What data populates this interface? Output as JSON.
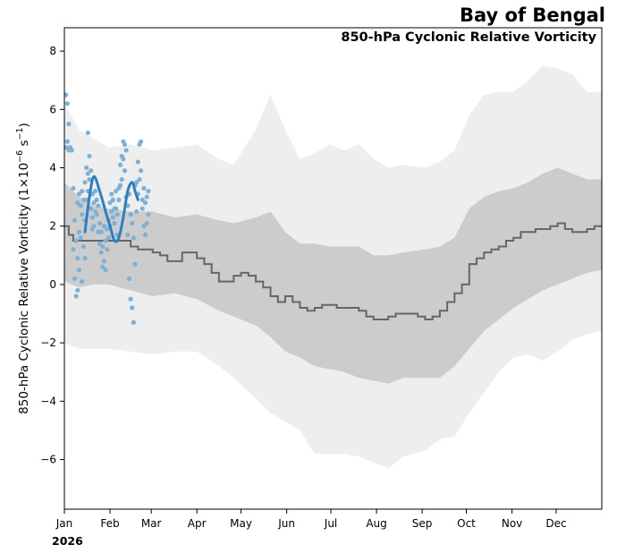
{
  "chart_data": {
    "type": "line",
    "title": "Bay of Bengal",
    "subtitle": "850-hPa Cyclonic Relative Vorticity",
    "ylabel_main": "850-hPa Cyclonic Relative Vorticity (1×10",
    "ylabel_exp": "−6",
    "ylabel_unit": " s",
    "ylabel_unit_exp": "−1",
    "ylabel_close": ")",
    "year_label": "2026",
    "xlim": [
      0,
      365
    ],
    "ylim": [
      -7.7,
      8.8
    ],
    "yticks": [
      -6,
      -4,
      -2,
      0,
      2,
      4,
      6,
      8
    ],
    "ytick_labels": [
      "−6",
      "−4",
      "−2",
      "0",
      "2",
      "4",
      "6",
      "8"
    ],
    "xticks": [
      0,
      31,
      59,
      90,
      120,
      151,
      181,
      212,
      243,
      273,
      304,
      334
    ],
    "xtick_labels": [
      "Jan",
      "Feb",
      "Mar",
      "Apr",
      "May",
      "Jun",
      "Jul",
      "Aug",
      "Sep",
      "Oct",
      "Nov",
      "Dec"
    ],
    "colors": {
      "outer_band": "#eeeeee",
      "inner_band": "#cccccc",
      "climatology_line": "#666666",
      "observed_points": "#7fb0d5",
      "observed_line": "#2f7ebd"
    },
    "outer_band": {
      "x": [
        0,
        10,
        20,
        30,
        45,
        60,
        75,
        90,
        105,
        115,
        130,
        140,
        150,
        160,
        170,
        180,
        190,
        200,
        210,
        220,
        230,
        245,
        255,
        265,
        275,
        285,
        295,
        305,
        315,
        325,
        335,
        345,
        355,
        365
      ],
      "upper": [
        6.2,
        5.3,
        5.0,
        4.7,
        4.8,
        4.6,
        4.7,
        4.8,
        4.3,
        4.1,
        5.3,
        6.5,
        5.3,
        4.3,
        4.5,
        4.8,
        4.6,
        4.8,
        4.3,
        4.0,
        4.1,
        4.0,
        4.2,
        4.6,
        5.8,
        6.5,
        6.6,
        6.6,
        7.0,
        7.5,
        7.4,
        7.2,
        6.6,
        6.6
      ],
      "lower": [
        -2.0,
        -2.2,
        -2.2,
        -2.2,
        -2.3,
        -2.4,
        -2.3,
        -2.3,
        -2.8,
        -3.2,
        -3.9,
        -4.4,
        -4.7,
        -5.0,
        -5.8,
        -5.8,
        -5.8,
        -5.9,
        -6.1,
        -6.3,
        -5.9,
        -5.7,
        -5.3,
        -5.2,
        -4.4,
        -3.7,
        -3.0,
        -2.5,
        -2.4,
        -2.6,
        -2.3,
        -1.9,
        -1.7,
        -1.6
      ]
    },
    "inner_band": {
      "x": [
        0,
        10,
        20,
        30,
        45,
        60,
        75,
        90,
        105,
        115,
        130,
        140,
        150,
        160,
        170,
        180,
        190,
        200,
        210,
        220,
        230,
        245,
        255,
        265,
        275,
        285,
        295,
        305,
        315,
        325,
        335,
        345,
        355,
        365
      ],
      "upper": [
        3.5,
        3.0,
        2.7,
        2.6,
        2.5,
        2.5,
        2.3,
        2.4,
        2.2,
        2.1,
        2.3,
        2.5,
        1.8,
        1.4,
        1.4,
        1.3,
        1.3,
        1.3,
        1.0,
        1.0,
        1.1,
        1.2,
        1.3,
        1.6,
        2.6,
        3.0,
        3.2,
        3.3,
        3.5,
        3.8,
        4.0,
        3.8,
        3.6,
        3.6
      ],
      "lower": [
        0.1,
        -0.1,
        0.0,
        0.0,
        -0.2,
        -0.4,
        -0.3,
        -0.5,
        -0.9,
        -1.1,
        -1.4,
        -1.8,
        -2.3,
        -2.5,
        -2.8,
        -2.9,
        -3.0,
        -3.2,
        -3.3,
        -3.4,
        -3.2,
        -3.2,
        -3.2,
        -2.8,
        -2.2,
        -1.6,
        -1.2,
        -0.8,
        -0.5,
        -0.2,
        0.0,
        0.2,
        0.4,
        0.5
      ]
    },
    "climatology": {
      "x": [
        0,
        3,
        6,
        10,
        15,
        20,
        25,
        30,
        35,
        40,
        45,
        50,
        55,
        60,
        65,
        70,
        75,
        80,
        85,
        90,
        95,
        100,
        105,
        110,
        115,
        120,
        125,
        130,
        135,
        140,
        145,
        150,
        155,
        160,
        165,
        170,
        175,
        180,
        185,
        190,
        195,
        200,
        205,
        210,
        215,
        220,
        225,
        230,
        235,
        240,
        245,
        250,
        255,
        260,
        265,
        270,
        275,
        280,
        285,
        290,
        295,
        300,
        305,
        310,
        315,
        320,
        325,
        330,
        335,
        340,
        345,
        350,
        355,
        360,
        365
      ],
      "y": [
        2.0,
        1.7,
        1.5,
        1.5,
        1.5,
        1.5,
        1.5,
        1.5,
        1.5,
        1.5,
        1.3,
        1.2,
        1.2,
        1.1,
        1.0,
        0.8,
        0.8,
        1.1,
        1.1,
        0.9,
        0.7,
        0.4,
        0.1,
        0.1,
        0.3,
        0.4,
        0.3,
        0.1,
        -0.1,
        -0.4,
        -0.6,
        -0.4,
        -0.6,
        -0.8,
        -0.9,
        -0.8,
        -0.7,
        -0.7,
        -0.8,
        -0.8,
        -0.8,
        -0.9,
        -1.1,
        -1.2,
        -1.2,
        -1.1,
        -1.0,
        -1.0,
        -1.0,
        -1.1,
        -1.2,
        -1.1,
        -0.9,
        -0.6,
        -0.3,
        0.0,
        0.7,
        0.9,
        1.1,
        1.2,
        1.3,
        1.5,
        1.6,
        1.8,
        1.8,
        1.9,
        1.9,
        2.0,
        2.1,
        1.9,
        1.8,
        1.8,
        1.9,
        2.0,
        2.0
      ]
    },
    "observed_line": {
      "x": [
        14,
        17,
        20,
        24,
        28,
        31,
        34,
        37,
        40,
        43,
        46,
        48,
        50
      ],
      "y": [
        1.8,
        3.0,
        3.7,
        3.2,
        2.5,
        2.0,
        1.5,
        1.6,
        2.3,
        3.2,
        3.5,
        3.2,
        2.9
      ]
    },
    "observed_points": {
      "x": [
        1,
        1,
        2,
        2,
        3,
        3,
        4,
        5,
        6,
        6,
        7,
        7,
        8,
        8,
        9,
        9,
        9,
        10,
        10,
        10,
        11,
        11,
        12,
        12,
        12,
        13,
        13,
        14,
        14,
        14,
        15,
        15,
        16,
        16,
        16,
        17,
        17,
        18,
        18,
        19,
        19,
        19,
        20,
        20,
        21,
        21,
        22,
        22,
        23,
        23,
        24,
        24,
        25,
        25,
        26,
        26,
        27,
        27,
        28,
        28,
        29,
        29,
        30,
        30,
        31,
        31,
        32,
        32,
        33,
        33,
        34,
        34,
        35,
        35,
        36,
        36,
        37,
        37,
        38,
        38,
        39,
        39,
        40,
        40,
        41,
        41,
        42,
        42,
        43,
        43,
        44,
        44,
        45,
        45,
        46,
        46,
        47,
        47,
        48,
        48,
        49,
        49,
        50,
        50,
        51,
        51,
        52,
        52,
        53,
        53,
        54,
        54,
        55,
        55,
        56,
        56,
        57,
        57
      ],
      "y": [
        6.5,
        4.7,
        6.2,
        4.9,
        5.5,
        4.6,
        4.7,
        4.6,
        3.3,
        1.2,
        2.2,
        0.2,
        1.5,
        -0.4,
        2.8,
        0.9,
        -0.2,
        3.1,
        1.8,
        0.5,
        2.7,
        1.6,
        3.2,
        2.4,
        0.1,
        2.9,
        1.3,
        3.5,
        2.2,
        0.9,
        4.0,
        2.9,
        5.2,
        3.8,
        3.2,
        4.4,
        3.6,
        3.9,
        2.6,
        3.1,
        2.3,
        1.9,
        2.8,
        2.0,
        3.2,
        2.5,
        2.9,
        2.4,
        2.7,
        1.8,
        2.1,
        1.4,
        1.8,
        1.1,
        1.3,
        0.6,
        2.0,
        0.8,
        1.5,
        0.5,
        1.9,
        1.2,
        2.2,
        1.6,
        2.8,
        2.0,
        3.1,
        2.5,
        2.9,
        2.3,
        2.6,
        2.1,
        3.2,
        2.6,
        2.4,
        1.7,
        3.3,
        2.9,
        4.1,
        3.4,
        4.4,
        3.6,
        4.9,
        4.3,
        4.8,
        3.9,
        4.6,
        3.0,
        2.7,
        1.7,
        3.1,
        0.2,
        2.4,
        -0.5,
        2.1,
        -0.8,
        1.6,
        -1.3,
        3.4,
        0.7,
        3.5,
        2.5,
        4.2,
        3.1,
        4.8,
        3.6,
        4.9,
        3.9,
        2.9,
        2.6,
        3.3,
        2.0,
        2.8,
        1.7,
        3.0,
        2.1,
        3.2,
        2.4
      ]
    }
  }
}
